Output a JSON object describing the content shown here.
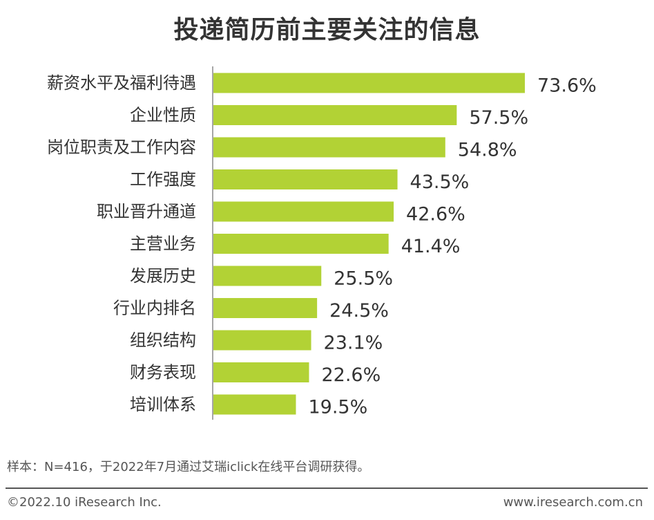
{
  "colors": {
    "bar": "#b2d235",
    "axis": "#888888",
    "text": "#333333"
  },
  "chart_data": {
    "type": "bar",
    "orientation": "horizontal",
    "title": "投递简历前主要关注的信息",
    "categories": [
      "薪资水平及福利待遇",
      "企业性质",
      "岗位职责及工作内容",
      "工作强度",
      "职业晋升通道",
      "主营业务",
      "发展历史",
      "行业内排名",
      "组织结构",
      "财务表现",
      "培训体系"
    ],
    "values": [
      73.6,
      57.5,
      54.8,
      43.5,
      42.6,
      41.4,
      25.5,
      24.5,
      23.1,
      22.6,
      19.5
    ],
    "value_labels": [
      "73.6%",
      "57.5%",
      "54.8%",
      "43.5%",
      "42.6%",
      "41.4%",
      "25.5%",
      "24.5%",
      "23.1%",
      "22.6%",
      "19.5%"
    ],
    "xlim": [
      0,
      100
    ],
    "grid": false,
    "legend": "none"
  },
  "footer": {
    "note": "样本：N=416，于2022年7月通过艾瑞iclick在线平台调研获得。",
    "copyright": "©2022.10 iResearch Inc.",
    "website": "www.iresearch.com.cn"
  }
}
